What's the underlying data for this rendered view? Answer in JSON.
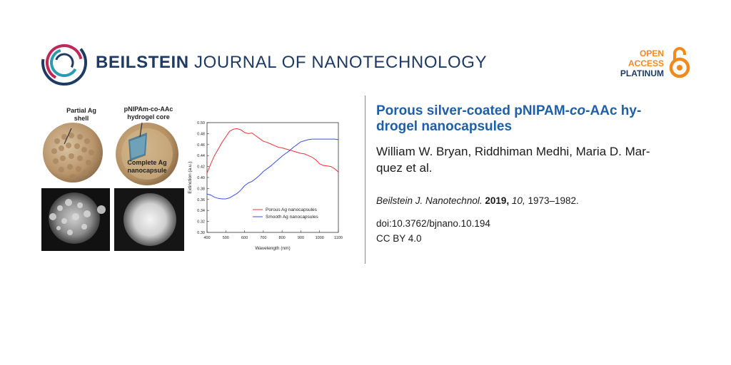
{
  "header": {
    "journal_bold": "BEILSTEIN",
    "journal_rest": "JOURNAL OF NANOTECHNOLOGY",
    "oa_line1": "OPEN",
    "oa_line2": "ACCESS",
    "oa_line3": "PLATINUM"
  },
  "figure": {
    "label_partial_1": "Partial Ag",
    "label_partial_2": "shell",
    "label_core_1": "pNIPAm-co-AAc",
    "label_core_2": "hydrogel core",
    "label_complete_1": "Complete Ag",
    "label_complete_2": "nanocapsule"
  },
  "chart_data": {
    "type": "line",
    "title": "",
    "xlabel": "Wavelength (nm)",
    "ylabel": "Extinction (a.u.)",
    "xlim": [
      400,
      1100
    ],
    "ylim": [
      0.3,
      0.5
    ],
    "xticks": [
      "400",
      "500",
      "600",
      "700",
      "800",
      "900",
      "1000",
      "1100"
    ],
    "yticks": [
      "0.30",
      "0.32",
      "0.34",
      "0.36",
      "0.38",
      "0.40",
      "0.42",
      "0.44",
      "0.46",
      "0.48",
      "0.50"
    ],
    "legend_position": "bottom-right",
    "series": [
      {
        "name": "Porous Ag nanocapsules",
        "color": "#e8333a",
        "x": [
          400,
          420,
          440,
          460,
          480,
          500,
          520,
          540,
          560,
          580,
          600,
          620,
          640,
          660,
          680,
          700,
          720,
          740,
          760,
          780,
          800,
          820,
          840,
          860,
          880,
          900,
          920,
          940,
          960,
          980,
          1000,
          1020,
          1040,
          1060,
          1080,
          1100
        ],
        "y": [
          0.408,
          0.425,
          0.44,
          0.452,
          0.464,
          0.474,
          0.484,
          0.488,
          0.489,
          0.487,
          0.482,
          0.48,
          0.481,
          0.476,
          0.471,
          0.466,
          0.464,
          0.461,
          0.458,
          0.455,
          0.454,
          0.452,
          0.45,
          0.448,
          0.446,
          0.444,
          0.443,
          0.44,
          0.437,
          0.432,
          0.425,
          0.422,
          0.421,
          0.42,
          0.416,
          0.41
        ]
      },
      {
        "name": "Smooth Ag nanocapsules",
        "color": "#3a4fe0",
        "x": [
          400,
          420,
          440,
          460,
          480,
          500,
          520,
          540,
          560,
          580,
          600,
          620,
          640,
          660,
          680,
          700,
          720,
          740,
          760,
          780,
          800,
          820,
          840,
          860,
          880,
          900,
          920,
          940,
          960,
          980,
          1000,
          1020,
          1040,
          1060,
          1080,
          1100
        ],
        "y": [
          0.37,
          0.368,
          0.364,
          0.362,
          0.361,
          0.361,
          0.363,
          0.367,
          0.371,
          0.377,
          0.385,
          0.39,
          0.393,
          0.398,
          0.404,
          0.411,
          0.416,
          0.421,
          0.427,
          0.433,
          0.439,
          0.444,
          0.449,
          0.455,
          0.46,
          0.465,
          0.467,
          0.469,
          0.47,
          0.47,
          0.47,
          0.47,
          0.47,
          0.47,
          0.47,
          0.469
        ]
      }
    ]
  },
  "article": {
    "title_part1": "Porous silver-coated pNIPAM-",
    "title_italic": "co",
    "title_part2": "-AAc hy-",
    "title_line2": "drogel nanocapsules",
    "authors_line1": "William W. Bryan, Riddhiman Medhi, Maria D. Mar-",
    "authors_line2": "quez et al.",
    "journal": "Beilstein J. Nanotechnol.",
    "year": "2019,",
    "volume": "10,",
    "pages": "1973–1982.",
    "doi": "doi:10.3762/bjnano.10.194",
    "license": "CC BY 4.0"
  },
  "colors": {
    "brand_navy": "#1f3a63",
    "title_blue": "#1f5fa8",
    "oa_orange": "#f08a1c"
  }
}
